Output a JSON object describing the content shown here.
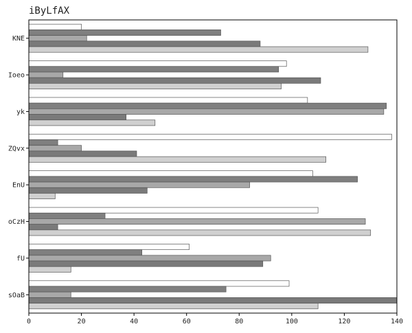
{
  "chart_data": {
    "type": "bar",
    "orientation": "horizontal",
    "title": "iByLfAX",
    "xlabel": "",
    "ylabel": "",
    "xlim": [
      0,
      140
    ],
    "x_ticks": [
      0,
      20,
      40,
      60,
      80,
      100,
      120,
      140
    ],
    "grid": false,
    "legend": "none",
    "categories": [
      "KNE",
      "Ioeo",
      "yk",
      "ZQvx",
      "EnU",
      "oCzH",
      "fU",
      "sOaB"
    ],
    "series": [
      {
        "color": "#ffffff",
        "values": [
          20,
          98,
          106,
          138,
          108,
          110,
          61,
          99
        ]
      },
      {
        "color": "#7f7f7f",
        "values": [
          73,
          95,
          136,
          11,
          125,
          29,
          43,
          75
        ]
      },
      {
        "color": "#a8a8a8",
        "values": [
          22,
          13,
          135,
          20,
          84,
          128,
          92,
          16
        ]
      },
      {
        "color": "#7a7a7a",
        "values": [
          88,
          111,
          37,
          41,
          45,
          11,
          89,
          140
        ]
      },
      {
        "color": "#d0d0d0",
        "values": [
          129,
          96,
          48,
          113,
          10,
          130,
          16,
          110
        ]
      }
    ]
  }
}
